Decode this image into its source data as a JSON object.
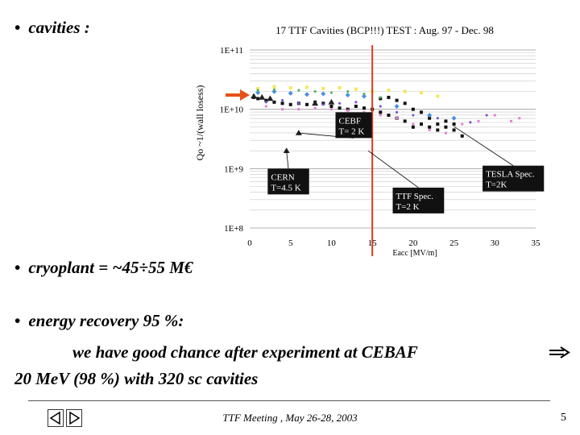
{
  "slide": {
    "bullet_char": "•",
    "bullet1": "cavities :",
    "bullet2": "cryoplant = ~45÷55 M€",
    "bullet3": "energy recovery 95 %:",
    "line1": "we have good chance after experiment at CEBAF",
    "line2": "20 MeV (98 %)   with   320 sc cavities",
    "footer": "TTF Meeting , May 26-28, 2003",
    "page": "5"
  },
  "colors": {
    "spec_line": "#e03a1e",
    "arrow": "#e8501a",
    "grid": "#c8c8c8"
  },
  "chart_data": {
    "type": "scatter",
    "title": "17 TTF Cavities (BCP!!!) TEST : Aug. 97 - Dec. 98",
    "xlabel": "Eacc [MV/m]",
    "ylabel": "Qo ~1/(wall losess)",
    "xlim": [
      0,
      35
    ],
    "ylim_log10": [
      8,
      11
    ],
    "x_ticks": [
      "0",
      "5",
      "10",
      "15",
      "20",
      "25",
      "30",
      "35"
    ],
    "y_ticks": [
      {
        "label": "1E+11",
        "log": 11
      },
      {
        "label": "1E+10",
        "log": 10
      },
      {
        "label": "1E+9",
        "log": 9
      },
      {
        "label": "1E+8",
        "log": 8
      }
    ],
    "log_scale_y": true,
    "grid": true,
    "vertical_line_x": 15,
    "annotations": [
      {
        "text": [
          "CEBF",
          "T= 2 K"
        ],
        "x": 6,
        "log": 9.6,
        "tx": 10.5,
        "tlog": 9.95
      },
      {
        "text": [
          "CERN",
          "T=4.5 K"
        ],
        "x": 4.5,
        "log": 9.3,
        "tx": 2.2,
        "tlog": 9.0
      },
      {
        "text": [
          "TTF Spec.",
          "T=2 K"
        ],
        "x": 14.5,
        "log": 9.3,
        "tx": 17.5,
        "tlog": 8.68
      },
      {
        "text": [
          "TESLA Spec.",
          "T=2K"
        ],
        "x": 25,
        "log": 9.71,
        "tx": 28.5,
        "tlog": 9.05
      }
    ],
    "series": [
      {
        "marker": "square",
        "color": "#111111",
        "size": 4,
        "points": [
          [
            0.5,
            10.2
          ],
          [
            1,
            10.18
          ],
          [
            2,
            10.15
          ],
          [
            3,
            10.12
          ],
          [
            4,
            10.1
          ],
          [
            5,
            10.08
          ],
          [
            6,
            10.1
          ],
          [
            7,
            10.08
          ],
          [
            8,
            10.12
          ],
          [
            9,
            10.1
          ],
          [
            10,
            10.05
          ],
          [
            11,
            10.02
          ],
          [
            12,
            10.0
          ],
          [
            13,
            10.05
          ],
          [
            14,
            10.02
          ],
          [
            15,
            10.0
          ],
          [
            16,
            10.18
          ],
          [
            17,
            10.2
          ],
          [
            18,
            10.15
          ],
          [
            19,
            10.1
          ],
          [
            20,
            10.0
          ],
          [
            21,
            9.95
          ],
          [
            22,
            9.85
          ],
          [
            23,
            9.75
          ],
          [
            24,
            9.7
          ],
          [
            25,
            9.65
          ],
          [
            26,
            9.55
          ],
          [
            20,
            9.7
          ],
          [
            21,
            9.75
          ],
          [
            22,
            9.7
          ],
          [
            23,
            9.65
          ],
          [
            24,
            9.8
          ],
          [
            25,
            9.75
          ],
          [
            16,
            9.95
          ],
          [
            17,
            9.9
          ],
          [
            18,
            9.85
          ],
          [
            19,
            9.8
          ]
        ]
      },
      {
        "marker": "triangle",
        "color": "#222222",
        "size": 4,
        "points": [
          [
            0.5,
            10.22
          ],
          [
            1.5,
            10.2
          ],
          [
            2.5,
            10.18
          ],
          [
            4.5,
            9.3
          ],
          [
            6,
            9.6
          ],
          [
            8,
            10.1
          ],
          [
            10,
            10.12
          ]
        ]
      },
      {
        "marker": "square",
        "color": "#f2e85a",
        "size": 4,
        "points": [
          [
            1,
            10.35
          ],
          [
            3,
            10.38
          ],
          [
            5,
            10.36
          ],
          [
            7,
            10.37
          ],
          [
            9,
            10.35
          ],
          [
            11,
            10.36
          ],
          [
            13,
            10.34
          ],
          [
            15,
            10.3
          ],
          [
            17,
            10.32
          ],
          [
            19,
            10.3
          ],
          [
            21,
            10.28
          ],
          [
            23,
            10.22
          ]
        ]
      },
      {
        "marker": "square",
        "color": "#e67fd6",
        "size": 3,
        "points": [
          [
            2,
            10.05
          ],
          [
            4,
            10.0
          ],
          [
            6,
            10.0
          ],
          [
            8,
            10.02
          ],
          [
            10,
            10.0
          ],
          [
            12,
            9.98
          ],
          [
            14,
            9.95
          ],
          [
            16,
            9.9
          ],
          [
            18,
            9.85
          ],
          [
            20,
            9.75
          ],
          [
            22,
            9.65
          ],
          [
            24,
            9.6
          ],
          [
            26,
            9.75
          ],
          [
            28,
            9.8
          ],
          [
            30,
            9.9
          ],
          [
            32,
            9.8
          ],
          [
            33,
            9.85
          ]
        ]
      },
      {
        "marker": "diamond",
        "color": "#4a8fe0",
        "size": 3,
        "points": [
          [
            1,
            10.28
          ],
          [
            3,
            10.3
          ],
          [
            5,
            10.27
          ],
          [
            7,
            10.25
          ],
          [
            9,
            10.26
          ],
          [
            12,
            10.24
          ],
          [
            14,
            10.22
          ],
          [
            18,
            10.05
          ],
          [
            22,
            9.9
          ],
          [
            25,
            9.85
          ]
        ]
      },
      {
        "marker": "circle",
        "color": "#7a4fd6",
        "size": 2.5,
        "points": [
          [
            2,
            10.12
          ],
          [
            4,
            10.15
          ],
          [
            6,
            10.1
          ],
          [
            9,
            10.08
          ],
          [
            11,
            10.1
          ],
          [
            13,
            10.12
          ],
          [
            16,
            10.05
          ],
          [
            18,
            9.95
          ],
          [
            20,
            9.9
          ],
          [
            23,
            9.85
          ],
          [
            27,
            9.78
          ],
          [
            29,
            9.9
          ]
        ]
      },
      {
        "marker": "circle",
        "color": "#55b060",
        "size": 2.5,
        "points": [
          [
            1,
            10.32
          ],
          [
            3,
            10.33
          ],
          [
            6,
            10.32
          ],
          [
            8,
            10.3
          ],
          [
            10,
            10.28
          ],
          [
            12,
            10.3
          ],
          [
            14,
            10.26
          ],
          [
            16,
            10.2
          ]
        ]
      }
    ]
  }
}
